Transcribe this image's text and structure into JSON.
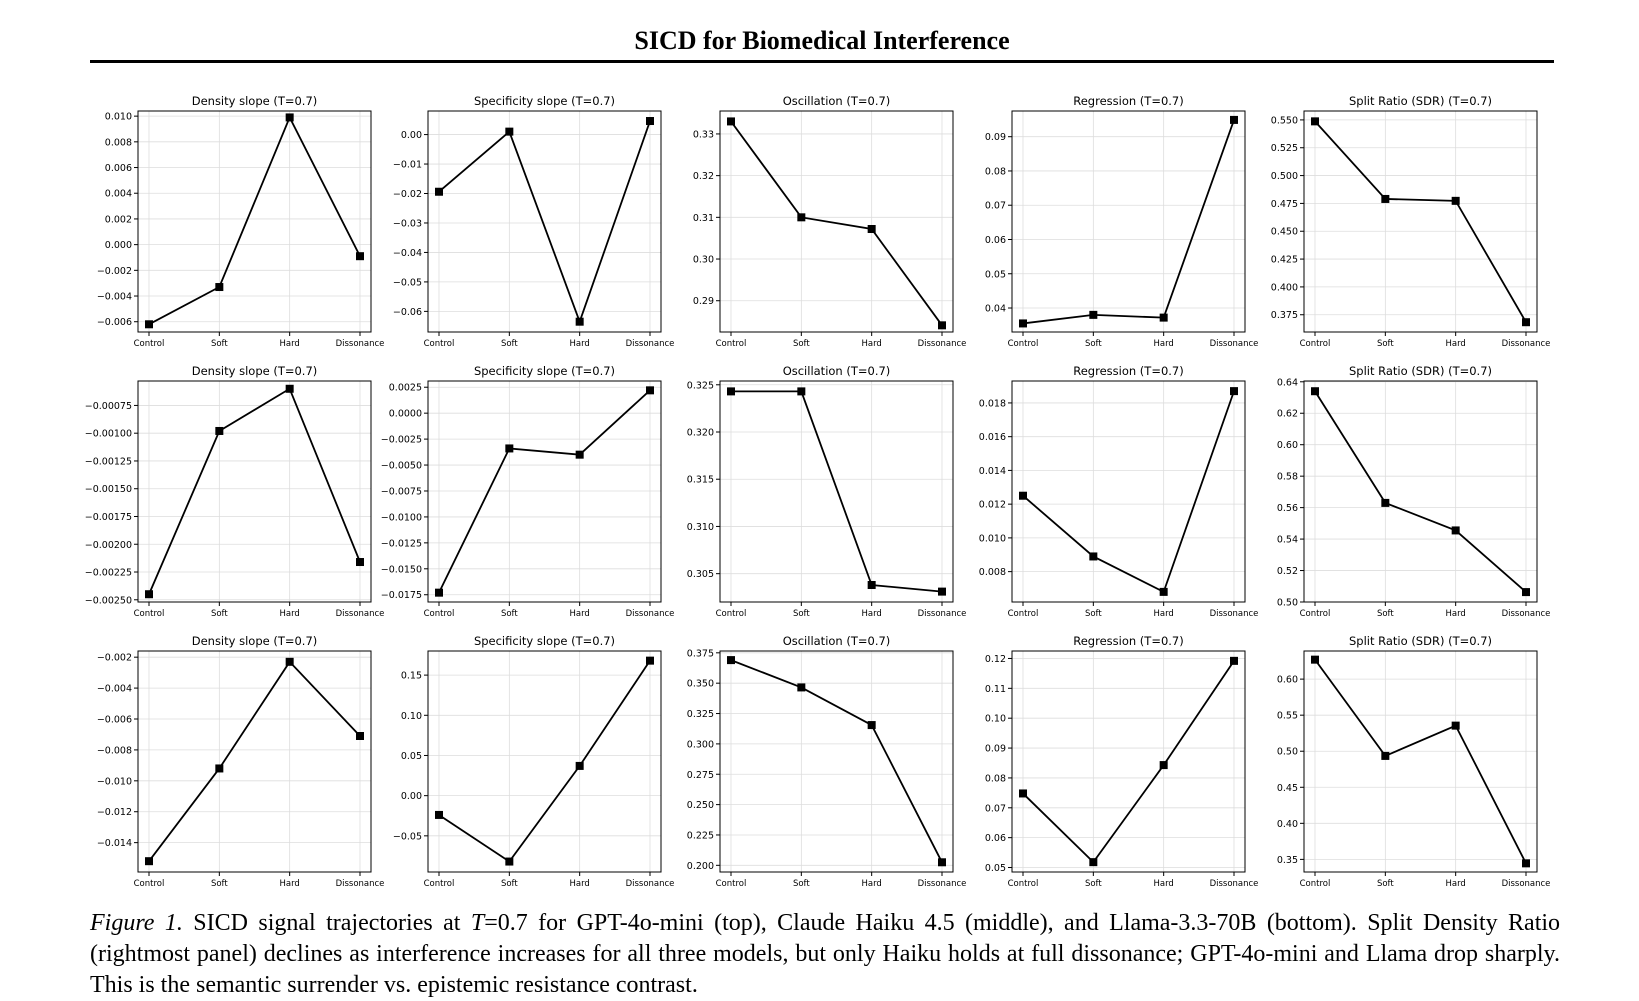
{
  "header": {
    "title": "SICD for Biomedical Interference"
  },
  "caption": {
    "label": "Figure 1.",
    "pre": "SICD signal trajectories at",
    "math_var": "T",
    "math_val": "=0.7",
    "post": "for GPT-4o-mini (top), Claude Haiku 4.5 (middle), and Llama-3.3-70B (bottom). Split Density Ratio (rightmost panel) declines as interference increases for all three models, but only Haiku holds at full dissonance; GPT-4o-mini and Llama drop sharply. This is the semantic surrender vs. epistemic resistance contrast."
  },
  "colors": {
    "line": "#000000",
    "grid": "#dddddd",
    "frame": "#000000"
  },
  "chart_data": [
    {
      "type": "line",
      "title": "Density slope (T=0.7)",
      "categories": [
        "Control",
        "Soft",
        "Hard",
        "Dissonance"
      ],
      "values": [
        -0.0062,
        -0.0033,
        0.0099,
        -0.0009
      ],
      "ylim": [
        -0.0068,
        0.0104
      ],
      "yticks": [
        0.01,
        0.008,
        0.006,
        0.004,
        0.002,
        0.0,
        -0.002,
        -0.004,
        -0.006
      ],
      "ytick_labels": [
        "0.010",
        "0.008",
        "0.006",
        "0.004",
        "0.002",
        "0.000",
        "−0.002",
        "−0.004",
        "−0.006"
      ],
      "grid": true
    },
    {
      "type": "line",
      "title": "Specificity slope (T=0.7)",
      "categories": [
        "Control",
        "Soft",
        "Hard",
        "Dissonance"
      ],
      "values": [
        -0.0194,
        0.001,
        -0.0635,
        0.0046
      ],
      "ylim": [
        -0.067,
        0.008
      ],
      "yticks": [
        0.0,
        -0.01,
        -0.02,
        -0.03,
        -0.04,
        -0.05,
        -0.06
      ],
      "ytick_labels": [
        "0.00",
        "−0.01",
        "−0.02",
        "−0.03",
        "−0.04",
        "−0.05",
        "−0.06"
      ],
      "grid": true
    },
    {
      "type": "line",
      "title": "Oscillation (T=0.7)",
      "categories": [
        "Control",
        "Soft",
        "Hard",
        "Dissonance"
      ],
      "values": [
        0.333,
        0.31,
        0.3072,
        0.2841
      ],
      "ylim": [
        0.2825,
        0.3355
      ],
      "yticks": [
        0.33,
        0.32,
        0.31,
        0.3,
        0.29
      ],
      "ytick_labels": [
        "0.33",
        "0.32",
        "0.31",
        "0.30",
        "0.29"
      ],
      "grid": true
    },
    {
      "type": "line",
      "title": "Regression (T=0.7)",
      "categories": [
        "Control",
        "Soft",
        "Hard",
        "Dissonance"
      ],
      "values": [
        0.0355,
        0.038,
        0.0372,
        0.0949
      ],
      "ylim": [
        0.033,
        0.0975
      ],
      "yticks": [
        0.09,
        0.08,
        0.07,
        0.06,
        0.05,
        0.04
      ],
      "ytick_labels": [
        "0.09",
        "0.08",
        "0.07",
        "0.06",
        "0.05",
        "0.04"
      ],
      "grid": true
    },
    {
      "type": "line",
      "title": "Split Ratio (SDR) (T=0.7)",
      "categories": [
        "Control",
        "Soft",
        "Hard",
        "Dissonance"
      ],
      "values": [
        0.5487,
        0.479,
        0.4773,
        0.3683
      ],
      "ylim": [
        0.3595,
        0.558
      ],
      "yticks": [
        0.55,
        0.525,
        0.5,
        0.475,
        0.45,
        0.425,
        0.4,
        0.375
      ],
      "ytick_labels": [
        "0.550",
        "0.525",
        "0.500",
        "0.475",
        "0.450",
        "0.425",
        "0.400",
        "0.375"
      ],
      "grid": true
    },
    {
      "type": "line",
      "title": "Density slope (T=0.7)",
      "categories": [
        "Control",
        "Soft",
        "Hard",
        "Dissonance"
      ],
      "values": [
        -0.00245,
        -0.00098,
        -0.0006,
        -0.00216
      ],
      "ylim": [
        -0.00252,
        -0.00053
      ],
      "yticks": [
        -0.00075,
        -0.001,
        -0.00125,
        -0.0015,
        -0.00175,
        -0.002,
        -0.00225,
        -0.0025
      ],
      "ytick_labels": [
        "−0.00075",
        "−0.00100",
        "−0.00125",
        "−0.00150",
        "−0.00175",
        "−0.00200",
        "−0.00225",
        "−0.00250"
      ],
      "grid": true
    },
    {
      "type": "line",
      "title": "Specificity slope (T=0.7)",
      "categories": [
        "Control",
        "Soft",
        "Hard",
        "Dissonance"
      ],
      "values": [
        -0.0173,
        -0.0034,
        -0.004,
        0.0022
      ],
      "ylim": [
        -0.0182,
        0.0031
      ],
      "yticks": [
        0.0025,
        0.0,
        -0.0025,
        -0.005,
        -0.0075,
        -0.01,
        -0.0125,
        -0.015,
        -0.0175
      ],
      "ytick_labels": [
        "0.0025",
        "0.0000",
        "−0.0025",
        "−0.0050",
        "−0.0075",
        "−0.0100",
        "−0.0125",
        "−0.0150",
        "−0.0175"
      ],
      "grid": true
    },
    {
      "type": "line",
      "title": "Oscillation (T=0.7)",
      "categories": [
        "Control",
        "Soft",
        "Hard",
        "Dissonance"
      ],
      "values": [
        0.3243,
        0.3243,
        0.3038,
        0.3031
      ],
      "ylim": [
        0.302,
        0.3254
      ],
      "yticks": [
        0.325,
        0.32,
        0.315,
        0.31,
        0.305
      ],
      "ytick_labels": [
        "0.325",
        "0.320",
        "0.315",
        "0.310",
        "0.305"
      ],
      "grid": true
    },
    {
      "type": "line",
      "title": "Regression (T=0.7)",
      "categories": [
        "Control",
        "Soft",
        "Hard",
        "Dissonance"
      ],
      "values": [
        0.0125,
        0.0089,
        0.0068,
        0.0187
      ],
      "ylim": [
        0.0062,
        0.0193
      ],
      "yticks": [
        0.018,
        0.016,
        0.014,
        0.012,
        0.01,
        0.008
      ],
      "ytick_labels": [
        "0.018",
        "0.016",
        "0.014",
        "0.012",
        "0.010",
        "0.008"
      ],
      "grid": true
    },
    {
      "type": "line",
      "title": "Split Ratio (SDR) (T=0.7)",
      "categories": [
        "Control",
        "Soft",
        "Hard",
        "Dissonance"
      ],
      "values": [
        0.634,
        0.563,
        0.5455,
        0.5063
      ],
      "ylim": [
        0.5,
        0.6405
      ],
      "yticks": [
        0.64,
        0.62,
        0.6,
        0.58,
        0.56,
        0.54,
        0.52,
        0.5
      ],
      "ytick_labels": [
        "0.64",
        "0.62",
        "0.60",
        "0.58",
        "0.56",
        "0.54",
        "0.52",
        "0.50"
      ],
      "grid": true
    },
    {
      "type": "line",
      "title": "Density slope (T=0.7)",
      "categories": [
        "Control",
        "Soft",
        "Hard",
        "Dissonance"
      ],
      "values": [
        -0.0152,
        -0.0092,
        -0.0023,
        -0.0071
      ],
      "ylim": [
        -0.0159,
        -0.0016
      ],
      "yticks": [
        -0.002,
        -0.004,
        -0.006,
        -0.008,
        -0.01,
        -0.012,
        -0.014
      ],
      "ytick_labels": [
        "−0.002",
        "−0.004",
        "−0.006",
        "−0.008",
        "−0.010",
        "−0.012",
        "−0.014"
      ],
      "grid": true
    },
    {
      "type": "line",
      "title": "Specificity slope (T=0.7)",
      "categories": [
        "Control",
        "Soft",
        "Hard",
        "Dissonance"
      ],
      "values": [
        -0.024,
        -0.082,
        0.037,
        0.168
      ],
      "ylim": [
        -0.095,
        0.18
      ],
      "yticks": [
        0.15,
        0.1,
        0.05,
        0.0,
        -0.05
      ],
      "ytick_labels": [
        "0.15",
        "0.10",
        "0.05",
        "0.00",
        "−0.05"
      ],
      "grid": true
    },
    {
      "type": "line",
      "title": "Oscillation (T=0.7)",
      "categories": [
        "Control",
        "Soft",
        "Hard",
        "Dissonance"
      ],
      "values": [
        0.369,
        0.3465,
        0.3155,
        0.2025
      ],
      "ylim": [
        0.1945,
        0.3765
      ],
      "yticks": [
        0.375,
        0.35,
        0.325,
        0.3,
        0.275,
        0.25,
        0.225,
        0.2
      ],
      "ytick_labels": [
        "0.375",
        "0.350",
        "0.325",
        "0.300",
        "0.275",
        "0.250",
        "0.225",
        "0.200"
      ],
      "grid": true
    },
    {
      "type": "line",
      "title": "Regression (T=0.7)",
      "categories": [
        "Control",
        "Soft",
        "Hard",
        "Dissonance"
      ],
      "values": [
        0.0748,
        0.0518,
        0.0843,
        0.1192
      ],
      "ylim": [
        0.0485,
        0.1225
      ],
      "yticks": [
        0.12,
        0.11,
        0.1,
        0.09,
        0.08,
        0.07,
        0.06,
        0.05
      ],
      "ytick_labels": [
        "0.12",
        "0.11",
        "0.10",
        "0.09",
        "0.08",
        "0.07",
        "0.06",
        "0.05"
      ],
      "grid": true
    },
    {
      "type": "line",
      "title": "Split Ratio (SDR) (T=0.7)",
      "categories": [
        "Control",
        "Soft",
        "Hard",
        "Dissonance"
      ],
      "values": [
        0.627,
        0.4935,
        0.5355,
        0.3445
      ],
      "ylim": [
        0.3325,
        0.639
      ],
      "yticks": [
        0.6,
        0.55,
        0.5,
        0.45,
        0.4,
        0.35
      ],
      "ytick_labels": [
        "0.60",
        "0.55",
        "0.50",
        "0.45",
        "0.40",
        "0.35"
      ],
      "grid": true
    }
  ]
}
